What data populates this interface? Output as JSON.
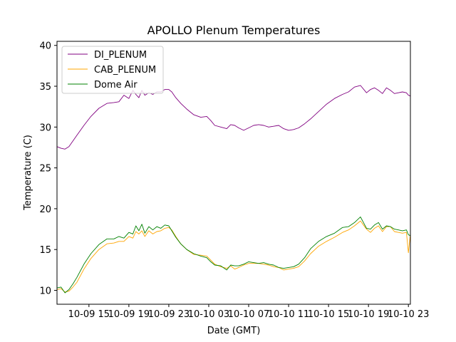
{
  "chart_data": {
    "type": "line",
    "title": "APOLLO Plenum Temperatures",
    "xlabel": "Date (GMT)",
    "ylabel": "Temperature (C)",
    "x_unit": "hours since 10-09 00:00 GMT",
    "xlim": [
      11.8,
      47.2
    ],
    "ylim": [
      8.3,
      40.5
    ],
    "grid": false,
    "legend_position": "top-left",
    "x_ticks": [
      {
        "value": 15,
        "label": "10-09 15"
      },
      {
        "value": 19,
        "label": "10-09 19"
      },
      {
        "value": 23,
        "label": "10-09 23"
      },
      {
        "value": 27,
        "label": "10-10 03"
      },
      {
        "value": 31,
        "label": "10-10 07"
      },
      {
        "value": 35,
        "label": "10-10 11"
      },
      {
        "value": 39,
        "label": "10-10 15"
      },
      {
        "value": 43,
        "label": "10-10 19"
      },
      {
        "value": 47,
        "label": "10-10 23"
      }
    ],
    "y_ticks": [
      {
        "value": 10,
        "label": "10"
      },
      {
        "value": 15,
        "label": "15"
      },
      {
        "value": 20,
        "label": "20"
      },
      {
        "value": 25,
        "label": "25"
      },
      {
        "value": 30,
        "label": "30"
      },
      {
        "value": 35,
        "label": "35"
      },
      {
        "value": 40,
        "label": "40"
      }
    ],
    "series": [
      {
        "name": "DI_PLENUM",
        "color": "#800080",
        "x": [
          11.8,
          12.2,
          12.6,
          13.0,
          13.4,
          13.8,
          14.5,
          15.2,
          16.0,
          16.8,
          17.5,
          18.0,
          18.5,
          19.0,
          19.4,
          19.7,
          20.0,
          20.3,
          20.6,
          21.0,
          21.4,
          21.8,
          22.2,
          22.6,
          23.0,
          23.3,
          23.7,
          24.2,
          24.8,
          25.5,
          26.2,
          26.8,
          27.2,
          27.6,
          28.2,
          28.8,
          29.2,
          29.6,
          30.0,
          30.5,
          31.0,
          31.5,
          32.0,
          32.5,
          33.0,
          33.5,
          34.0,
          34.5,
          35.0,
          35.5,
          36.0,
          36.6,
          37.2,
          38.0,
          38.8,
          39.6,
          40.4,
          41.0,
          41.6,
          42.2,
          42.8,
          43.2,
          43.6,
          44.0,
          44.4,
          44.8,
          45.2,
          45.6,
          46.0,
          46.4,
          46.8,
          47.0,
          47.2
        ],
        "values": [
          27.6,
          27.4,
          27.3,
          27.6,
          28.3,
          29.0,
          30.2,
          31.3,
          32.3,
          32.9,
          33.0,
          33.1,
          33.9,
          33.5,
          34.5,
          34.0,
          33.6,
          34.5,
          33.9,
          34.2,
          34.0,
          34.3,
          34.3,
          34.6,
          34.6,
          34.3,
          33.6,
          32.9,
          32.2,
          31.5,
          31.2,
          31.3,
          30.8,
          30.2,
          30.0,
          29.8,
          30.3,
          30.2,
          29.9,
          29.6,
          29.9,
          30.2,
          30.3,
          30.2,
          30.0,
          30.1,
          30.2,
          29.8,
          29.6,
          29.7,
          29.9,
          30.4,
          31.0,
          31.9,
          32.8,
          33.5,
          34.0,
          34.3,
          34.9,
          35.1,
          34.2,
          34.6,
          34.8,
          34.5,
          34.1,
          34.8,
          34.5,
          34.1,
          34.2,
          34.3,
          34.2,
          33.9,
          33.8
        ]
      },
      {
        "name": "CAB_PLENUM",
        "color": "#ffa500",
        "x": [
          11.8,
          12.2,
          12.6,
          13.0,
          13.4,
          13.8,
          14.5,
          15.2,
          16.0,
          16.8,
          17.5,
          18.0,
          18.5,
          19.0,
          19.4,
          19.7,
          20.0,
          20.3,
          20.6,
          21.0,
          21.4,
          21.8,
          22.2,
          22.6,
          23.0,
          23.3,
          23.7,
          24.2,
          24.8,
          25.5,
          26.2,
          26.8,
          27.2,
          27.6,
          28.2,
          28.8,
          29.2,
          29.6,
          30.0,
          30.5,
          31.0,
          31.5,
          32.0,
          32.5,
          33.0,
          33.5,
          34.0,
          34.5,
          35.0,
          35.5,
          36.0,
          36.6,
          37.2,
          38.0,
          38.8,
          39.6,
          40.4,
          41.0,
          41.6,
          42.2,
          42.8,
          43.2,
          43.6,
          44.0,
          44.4,
          44.8,
          45.2,
          45.6,
          46.0,
          46.4,
          46.8,
          47.0,
          47.2
        ],
        "values": [
          10.1,
          10.2,
          9.8,
          9.9,
          10.4,
          11.0,
          12.6,
          13.9,
          15.0,
          15.7,
          15.8,
          16.0,
          16.0,
          16.6,
          16.4,
          17.2,
          16.9,
          17.3,
          16.6,
          17.3,
          16.9,
          17.2,
          17.3,
          17.6,
          17.7,
          17.4,
          16.6,
          15.7,
          15.0,
          14.4,
          14.3,
          14.2,
          13.7,
          13.2,
          12.9,
          12.7,
          13.0,
          12.6,
          12.8,
          13.1,
          13.3,
          13.3,
          13.3,
          13.2,
          13.1,
          12.9,
          12.8,
          12.5,
          12.6,
          12.7,
          12.9,
          13.6,
          14.5,
          15.4,
          16.0,
          16.5,
          17.1,
          17.4,
          17.9,
          18.5,
          17.5,
          17.1,
          17.6,
          17.9,
          17.2,
          17.8,
          17.8,
          17.2,
          17.1,
          17.0,
          17.1,
          14.6,
          16.9
        ]
      },
      {
        "name": "Dome Air",
        "color": "#008000",
        "x": [
          11.8,
          12.2,
          12.6,
          13.0,
          13.4,
          13.8,
          14.5,
          15.2,
          16.0,
          16.8,
          17.5,
          18.0,
          18.5,
          19.0,
          19.4,
          19.7,
          20.0,
          20.3,
          20.6,
          21.0,
          21.4,
          21.8,
          22.2,
          22.6,
          23.0,
          23.3,
          23.7,
          24.2,
          24.8,
          25.5,
          26.2,
          26.8,
          27.2,
          27.6,
          28.2,
          28.8,
          29.2,
          29.6,
          30.0,
          30.5,
          31.0,
          31.5,
          32.0,
          32.5,
          33.0,
          33.5,
          34.0,
          34.5,
          35.0,
          35.5,
          36.0,
          36.6,
          37.2,
          38.0,
          38.8,
          39.6,
          40.4,
          41.0,
          41.6,
          42.2,
          42.8,
          43.2,
          43.6,
          44.0,
          44.4,
          44.8,
          45.2,
          45.6,
          46.0,
          46.4,
          46.8,
          47.0,
          47.2
        ],
        "values": [
          10.3,
          10.4,
          9.7,
          10.1,
          10.8,
          11.6,
          13.2,
          14.5,
          15.6,
          16.3,
          16.3,
          16.6,
          16.4,
          17.1,
          16.9,
          17.9,
          17.3,
          18.1,
          17.0,
          17.8,
          17.4,
          17.8,
          17.6,
          18.0,
          17.9,
          17.3,
          16.5,
          15.7,
          15.0,
          14.5,
          14.2,
          14.0,
          13.5,
          13.1,
          13.0,
          12.5,
          13.1,
          13.0,
          13.0,
          13.2,
          13.5,
          13.4,
          13.3,
          13.4,
          13.2,
          13.1,
          12.8,
          12.7,
          12.8,
          12.9,
          13.2,
          14.0,
          15.1,
          16.0,
          16.6,
          17.0,
          17.7,
          17.8,
          18.3,
          19.0,
          17.6,
          17.5,
          18.0,
          18.3,
          17.5,
          17.9,
          17.8,
          17.5,
          17.4,
          17.3,
          17.4,
          16.8,
          16.7
        ]
      }
    ]
  }
}
